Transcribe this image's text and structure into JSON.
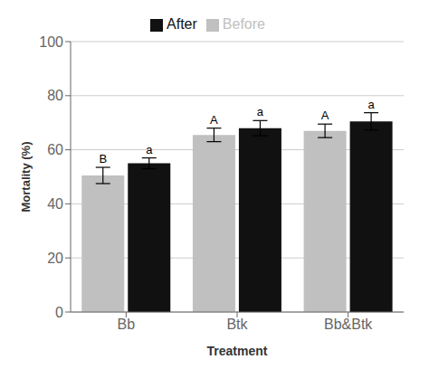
{
  "chart_data": {
    "type": "bar",
    "xlabel": "Treatment",
    "ylabel": "Mortality (%)",
    "categories": [
      "Bb",
      "Btk",
      "Bb&Btk"
    ],
    "series": [
      {
        "name": "Before",
        "color": "#c0c0c0",
        "values": [
          50.5,
          65.5,
          67.0
        ],
        "errors": [
          3.0,
          2.5,
          2.5
        ],
        "letters": [
          "B",
          "A",
          "A"
        ]
      },
      {
        "name": "After",
        "color": "#111111",
        "values": [
          55.0,
          68.0,
          70.5
        ],
        "errors": [
          2.0,
          2.8,
          3.2
        ],
        "letters": [
          "a",
          "a",
          "a"
        ]
      }
    ],
    "ylim": [
      0,
      100
    ],
    "yticks": [
      0,
      20,
      40,
      60,
      80,
      100
    ],
    "grid": true,
    "legend": "top"
  }
}
